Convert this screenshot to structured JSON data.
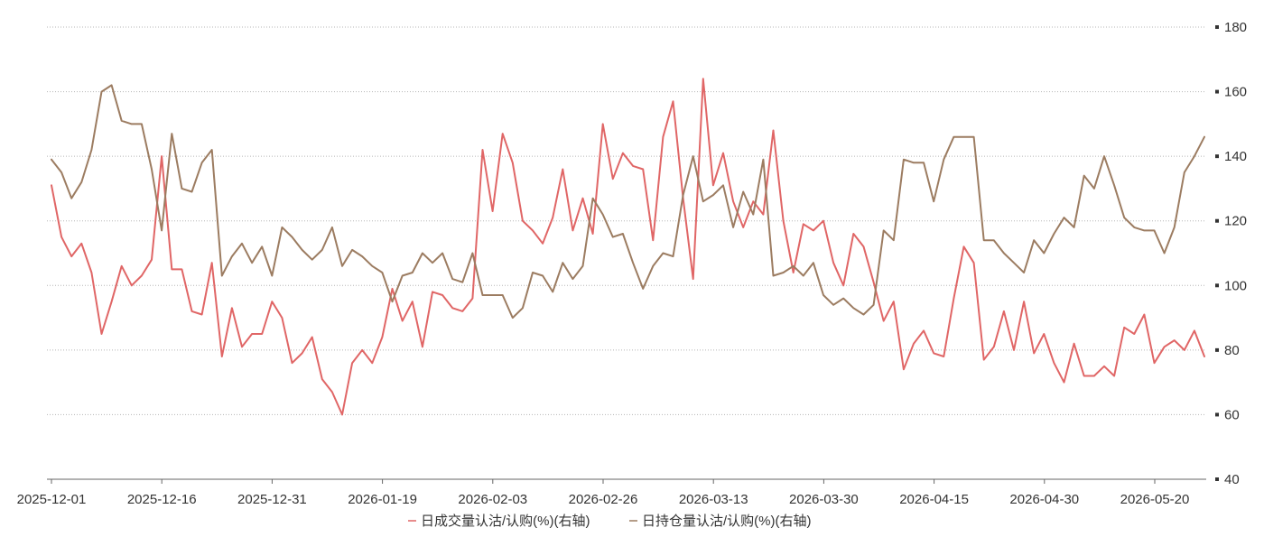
{
  "chart_data": {
    "type": "line",
    "x_tick_labels": [
      "2025-12-01",
      "2025-12-16",
      "2025-12-31",
      "2026-01-19",
      "2026-02-03",
      "2026-02-26",
      "2026-03-13",
      "2026-03-30",
      "2026-04-15",
      "2026-04-30",
      "2026-05-20"
    ],
    "ylim": [
      40,
      180
    ],
    "y_ticks": [
      40,
      60,
      80,
      100,
      120,
      140,
      160,
      180
    ],
    "y_axis_position": "right",
    "grid": "horizontal-dotted",
    "legend_position": "bottom-center",
    "series": [
      {
        "name": "日成交量认沽/认购(%)(右轴)",
        "color": "#e06666",
        "values": [
          131,
          115,
          109,
          113,
          104,
          85,
          95,
          106,
          100,
          103,
          108,
          140,
          105,
          105,
          92,
          91,
          107,
          78,
          93,
          81,
          85,
          85,
          95,
          90,
          76,
          79,
          84,
          71,
          67,
          60,
          76,
          80,
          76,
          84,
          99,
          89,
          95,
          81,
          98,
          97,
          93,
          92,
          96,
          142,
          123,
          147,
          138,
          120,
          117,
          113,
          121,
          136,
          117,
          127,
          116,
          150,
          133,
          141,
          137,
          136,
          114,
          146,
          157,
          127,
          102,
          164,
          131,
          141,
          126,
          118,
          126,
          122,
          148,
          120,
          104,
          119,
          117,
          120,
          107,
          100,
          116,
          112,
          101,
          89,
          95,
          74,
          82,
          86,
          79,
          78,
          96,
          112,
          107,
          77,
          81,
          92,
          80,
          95,
          79,
          85,
          76,
          70,
          82,
          72,
          72,
          75,
          72,
          87,
          85,
          91,
          76,
          81,
          83,
          80,
          86,
          78
        ]
      },
      {
        "name": "日持仓量认沽/认购(%)(右轴)",
        "color": "#9c7c61",
        "values": [
          139,
          135,
          127,
          132,
          142,
          160,
          162,
          151,
          150,
          150,
          136,
          117,
          147,
          130,
          129,
          138,
          142,
          103,
          109,
          113,
          107,
          112,
          103,
          118,
          115,
          111,
          108,
          111,
          118,
          106,
          111,
          109,
          106,
          104,
          95,
          103,
          104,
          110,
          107,
          110,
          102,
          101,
          110,
          97,
          97,
          97,
          90,
          93,
          104,
          103,
          98,
          107,
          102,
          106,
          127,
          122,
          115,
          116,
          107,
          99,
          106,
          110,
          109,
          128,
          140,
          126,
          128,
          131,
          118,
          129,
          122,
          139,
          103,
          104,
          106,
          103,
          107,
          97,
          94,
          96,
          93,
          91,
          94,
          117,
          114,
          139,
          138,
          138,
          126,
          139,
          146,
          146,
          146,
          114,
          114,
          110,
          107,
          104,
          114,
          110,
          116,
          121,
          118,
          134,
          130,
          140,
          131,
          121,
          118,
          117,
          117,
          110,
          118,
          135,
          140,
          146
        ]
      }
    ]
  }
}
